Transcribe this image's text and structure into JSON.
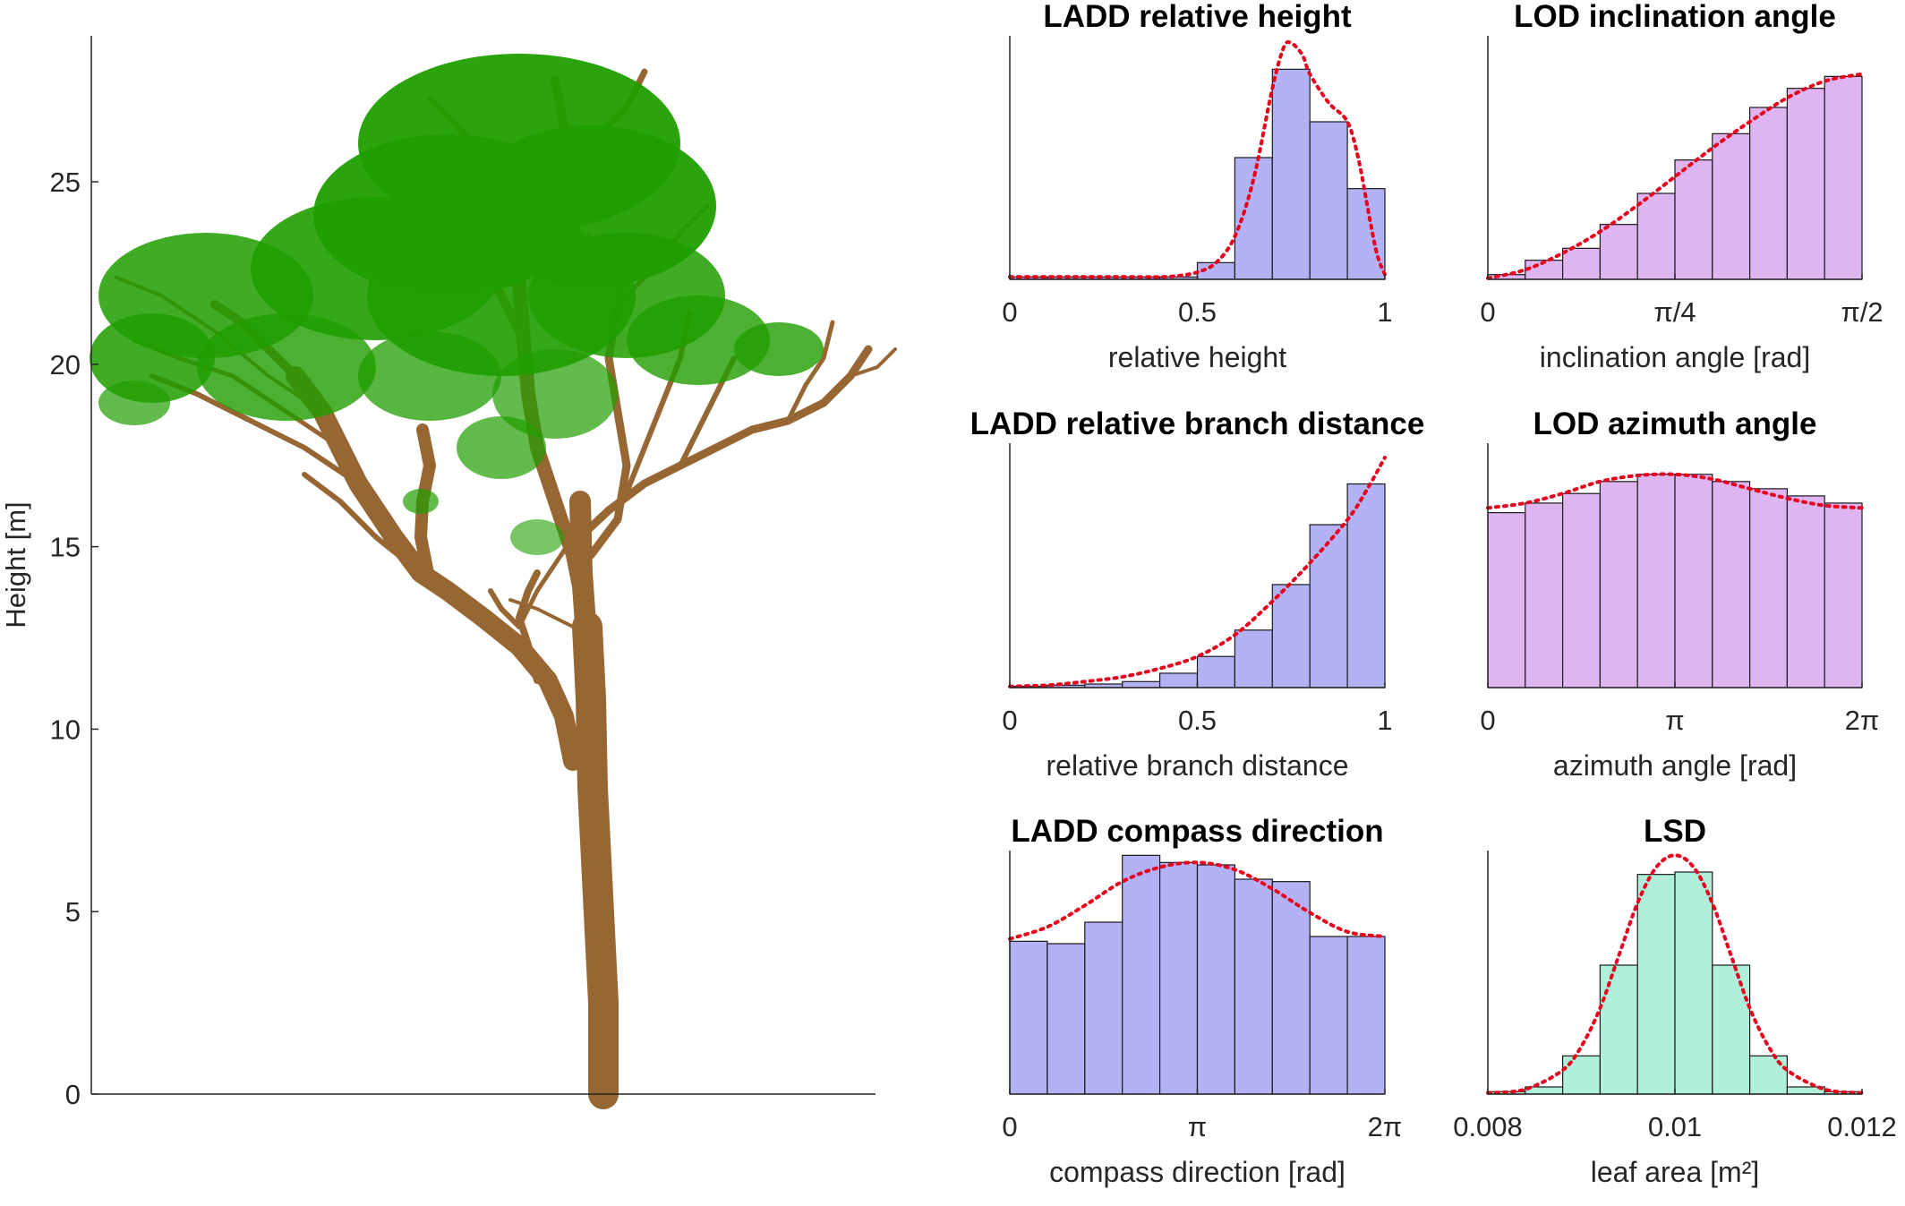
{
  "tree_panel": {
    "ylabel": "Height [m]",
    "ylim": [
      0,
      29
    ],
    "yticks": [
      0,
      5,
      10,
      15,
      20,
      25
    ],
    "trunk_color": "#966633",
    "leaf_color": "#1f9e00"
  },
  "chart_data": [
    {
      "type": "bar",
      "title": "LADD relative height",
      "xlabel": "relative height",
      "xlim": [
        0,
        1
      ],
      "xticks": [
        {
          "v": 0,
          "label": "0"
        },
        {
          "v": 0.5,
          "label": "0.5"
        },
        {
          "v": 1,
          "label": "1"
        }
      ],
      "ylim": [
        0,
        1.02
      ],
      "bin_edges": [
        0,
        0.1,
        0.2,
        0.3,
        0.4,
        0.5,
        0.6,
        0.7,
        0.8,
        0.9,
        1.0
      ],
      "values": [
        0.01,
        0.01,
        0.01,
        0.01,
        0.01,
        0.07,
        0.51,
        0.88,
        0.66,
        0.38
      ],
      "fit_curve": {
        "x": [
          0,
          0.1,
          0.2,
          0.3,
          0.4,
          0.45,
          0.5,
          0.55,
          0.6,
          0.65,
          0.7,
          0.73,
          0.75,
          0.78,
          0.8,
          0.85,
          0.9,
          0.93,
          0.96,
          0.98,
          1.0
        ],
        "y": [
          0.01,
          0.01,
          0.01,
          0.01,
          0.01,
          0.015,
          0.03,
          0.07,
          0.18,
          0.42,
          0.8,
          0.97,
          0.99,
          0.94,
          0.86,
          0.74,
          0.66,
          0.5,
          0.25,
          0.1,
          0.02
        ]
      },
      "bar_color": "#b2b2f5",
      "fit_color": "#e8001c"
    },
    {
      "type": "bar",
      "title": "LOD inclination angle",
      "xlabel": "inclination angle [rad]",
      "xlim": [
        0,
        1.5708
      ],
      "xticks": [
        {
          "v": 0,
          "label": "0"
        },
        {
          "v": 0.7854,
          "label": "π/4"
        },
        {
          "v": 1.5708,
          "label": "π/2"
        }
      ],
      "ylim": [
        0,
        1.02
      ],
      "bin_edges": [
        0,
        0.15708,
        0.31416,
        0.47124,
        0.62832,
        0.7854,
        0.94248,
        1.09956,
        1.25664,
        1.41372,
        1.5708
      ],
      "values": [
        0.02,
        0.08,
        0.13,
        0.23,
        0.36,
        0.5,
        0.61,
        0.72,
        0.8,
        0.85
      ],
      "fit_curve": {
        "x": [
          0,
          0.1571,
          0.3142,
          0.4712,
          0.6283,
          0.7854,
          0.9425,
          1.0996,
          1.2566,
          1.4137,
          1.5708
        ],
        "y": [
          0.005,
          0.04,
          0.11,
          0.2,
          0.31,
          0.43,
          0.55,
          0.66,
          0.76,
          0.83,
          0.86
        ]
      },
      "bar_color": "#deb5f0",
      "fit_color": "#e8001c"
    },
    {
      "type": "bar",
      "title": "LADD relative branch distance",
      "xlabel": "relative branch distance",
      "xlim": [
        0,
        1
      ],
      "xticks": [
        {
          "v": 0,
          "label": "0"
        },
        {
          "v": 0.5,
          "label": "0.5"
        },
        {
          "v": 1,
          "label": "1"
        }
      ],
      "ylim": [
        0,
        1.02
      ],
      "bin_edges": [
        0,
        0.1,
        0.2,
        0.3,
        0.4,
        0.5,
        0.6,
        0.7,
        0.8,
        0.9,
        1.0
      ],
      "values": [
        0.005,
        0.01,
        0.015,
        0.025,
        0.06,
        0.13,
        0.24,
        0.43,
        0.68,
        0.85
      ],
      "fit_curve": {
        "x": [
          0,
          0.1,
          0.2,
          0.3,
          0.4,
          0.5,
          0.6,
          0.7,
          0.8,
          0.9,
          0.95,
          1.0
        ],
        "y": [
          0.005,
          0.01,
          0.025,
          0.045,
          0.08,
          0.13,
          0.22,
          0.36,
          0.52,
          0.7,
          0.82,
          0.96
        ]
      },
      "bar_color": "#b2b2f5",
      "fit_color": "#e8001c"
    },
    {
      "type": "bar",
      "title": "LOD azimuth angle",
      "xlabel": "azimuth angle [rad]",
      "xlim": [
        0,
        6.2832
      ],
      "xticks": [
        {
          "v": 0,
          "label": "0"
        },
        {
          "v": 3.1416,
          "label": "π"
        },
        {
          "v": 6.2832,
          "label": "2π"
        }
      ],
      "ylim": [
        0,
        1.02
      ],
      "bin_edges": [
        0,
        0.62832,
        1.25664,
        1.88496,
        2.51328,
        3.1416,
        3.76992,
        4.39824,
        5.02656,
        5.65488,
        6.2832
      ],
      "values": [
        0.73,
        0.77,
        0.81,
        0.86,
        0.89,
        0.89,
        0.86,
        0.83,
        0.8,
        0.77
      ],
      "fit_curve": {
        "x": [
          0,
          0.6283,
          1.2566,
          1.885,
          2.5133,
          3.1416,
          3.7699,
          4.3982,
          5.0265,
          5.6549,
          6.2832
        ],
        "y": [
          0.75,
          0.77,
          0.81,
          0.86,
          0.885,
          0.89,
          0.87,
          0.83,
          0.79,
          0.76,
          0.75
        ]
      },
      "bar_color": "#deb5f0",
      "fit_color": "#e8001c"
    },
    {
      "type": "bar",
      "title": "LADD compass direction",
      "xlabel": "compass direction [rad]",
      "xlim": [
        0,
        6.2832
      ],
      "xticks": [
        {
          "v": 0,
          "label": "0"
        },
        {
          "v": 3.1416,
          "label": "π"
        },
        {
          "v": 6.2832,
          "label": "2π"
        }
      ],
      "ylim": [
        0,
        1.02
      ],
      "bin_edges": [
        0,
        0.62832,
        1.25664,
        1.88496,
        2.51328,
        3.1416,
        3.76992,
        4.39824,
        5.02656,
        5.65488,
        6.2832
      ],
      "values": [
        0.64,
        0.63,
        0.72,
        1.0,
        0.97,
        0.96,
        0.9,
        0.89,
        0.66,
        0.66
      ],
      "fit_curve": {
        "x": [
          0,
          0.6283,
          1.2566,
          1.885,
          2.5133,
          3.1416,
          3.7699,
          4.3982,
          5.0265,
          5.6549,
          6.2832
        ],
        "y": [
          0.65,
          0.7,
          0.79,
          0.89,
          0.95,
          0.97,
          0.94,
          0.86,
          0.76,
          0.68,
          0.66
        ]
      },
      "bar_color": "#b2b2f5",
      "fit_color": "#e8001c"
    },
    {
      "type": "bar",
      "title": "LSD",
      "xlabel": "leaf area [m²]",
      "xlim": [
        0.008,
        0.012
      ],
      "xticks": [
        {
          "v": 0.008,
          "label": "0.008"
        },
        {
          "v": 0.01,
          "label": "0.01"
        },
        {
          "v": 0.012,
          "label": "0.012"
        }
      ],
      "ylim": [
        0,
        1.02
      ],
      "bin_edges": [
        0.008,
        0.0084,
        0.0088,
        0.0092,
        0.0096,
        0.01,
        0.0104,
        0.0108,
        0.0112,
        0.0116,
        0.012
      ],
      "values": [
        0.01,
        0.03,
        0.16,
        0.54,
        0.92,
        0.93,
        0.54,
        0.16,
        0.03,
        0.01
      ],
      "fit_curve": {
        "x": [
          0.008,
          0.0084,
          0.0088,
          0.009,
          0.0092,
          0.0094,
          0.0096,
          0.0098,
          0.01,
          0.0102,
          0.0104,
          0.0106,
          0.0108,
          0.011,
          0.0112,
          0.0116,
          0.012
        ],
        "y": [
          0.005,
          0.02,
          0.1,
          0.2,
          0.36,
          0.58,
          0.8,
          0.95,
          1.0,
          0.95,
          0.8,
          0.58,
          0.36,
          0.2,
          0.1,
          0.02,
          0.005
        ]
      },
      "bar_color": "#b0efd9",
      "fit_color": "#e8001c"
    }
  ]
}
